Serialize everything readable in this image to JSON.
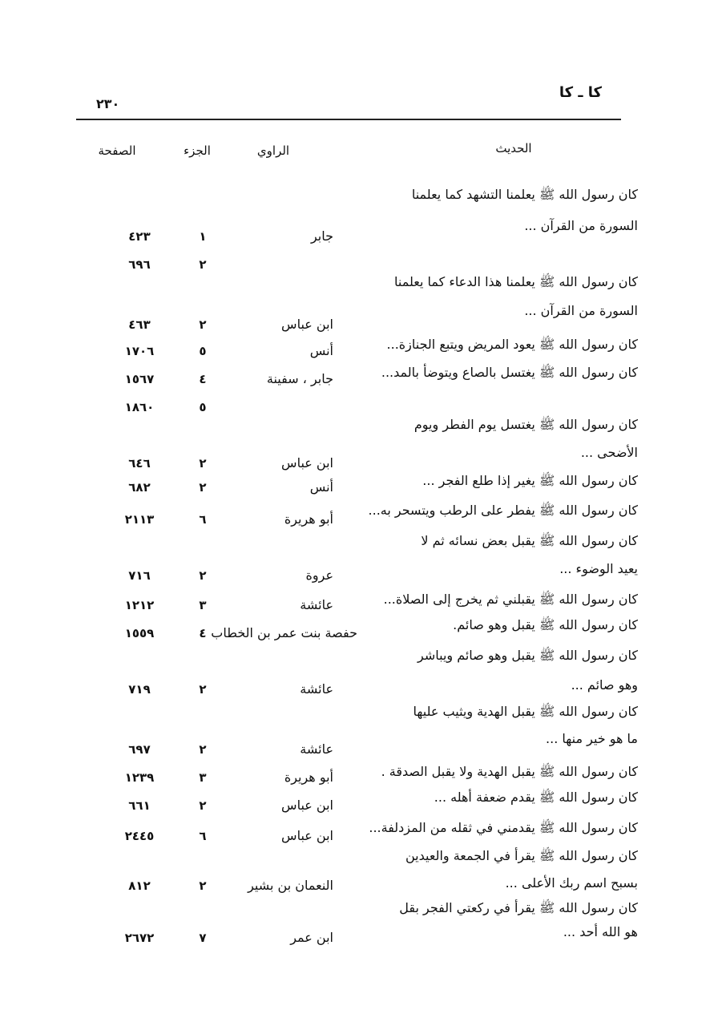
{
  "header": {
    "section": "كا ـ كا",
    "page_number": "٢٣٠"
  },
  "columns": {
    "hadith": "الحديث",
    "narrator": "الراوي",
    "volume": "الجزء",
    "page": "الصفحة"
  },
  "entries": [
    {
      "hadith_lines": [
        "كان رسول الله ﷺ يعلمنا التشهد كما يعلمنا",
        "السورة من القرآن ..."
      ],
      "refs": [
        {
          "narrator": "جابر",
          "volume": "١",
          "page": "٤٢٣"
        },
        {
          "narrator": "",
          "volume": "٢",
          "page": "٦٩٦"
        }
      ]
    },
    {
      "hadith_lines": [
        "كان رسول الله ﷺ يعلمنا هذا الدعاء كما يعلمنا",
        "السورة من القرآن ..."
      ],
      "refs": [
        {
          "narrator": "ابن عباس",
          "volume": "٢",
          "page": "٤٦٣"
        }
      ]
    },
    {
      "hadith_lines": [
        "كان رسول الله ﷺ يعود المريض ويتبع الجنازة..."
      ],
      "refs": [
        {
          "narrator": "أنس",
          "volume": "٥",
          "page": "١٧٠٦"
        }
      ]
    },
    {
      "hadith_lines": [
        "كان رسول الله ﷺ يغتسل بالصاع ويتوضأ بالمد..."
      ],
      "refs": [
        {
          "narrator": "جابر ، سفينة",
          "volume": "٤",
          "page": "١٥٦٧"
        },
        {
          "narrator": "",
          "volume": "٥",
          "page": "١٨٦٠"
        }
      ]
    },
    {
      "hadith_lines": [
        "كان رسول الله ﷺ يغتسل يوم الفطر ويوم",
        "الأضحى ..."
      ],
      "refs": [
        {
          "narrator": "ابن عباس",
          "volume": "٢",
          "page": "٦٤٦"
        }
      ]
    },
    {
      "hadith_lines": [
        "كان رسول الله ﷺ يغير إذا طلع الفجر ..."
      ],
      "refs": [
        {
          "narrator": "أنس",
          "volume": "٢",
          "page": "٦٨٢"
        }
      ]
    },
    {
      "hadith_lines": [
        "كان رسول الله ﷺ يفطر على الرطب ويتسحر به..."
      ],
      "refs": [
        {
          "narrator": "أبو هريرة",
          "volume": "٦",
          "page": "٢١١٣"
        }
      ]
    },
    {
      "hadith_lines": [
        "كان رسول الله ﷺ يقبل بعض نسائه ثم لا",
        "يعيد الوضوء ..."
      ],
      "refs": [
        {
          "narrator": "عروة",
          "volume": "٢",
          "page": "٧١٦"
        }
      ]
    },
    {
      "hadith_lines": [
        "كان رسول الله ﷺ يقبلني ثم يخرج إلى الصلاة..."
      ],
      "refs": [
        {
          "narrator": "عائشة",
          "volume": "٣",
          "page": "١٢١٢"
        }
      ]
    },
    {
      "hadith_lines": [
        "كان رسول الله ﷺ يقبل وهو صائم."
      ],
      "refs": [
        {
          "narrator": "حفصة بنت عمر بن الخطاب",
          "volume": "٤",
          "page": "١٥٥٩"
        }
      ]
    },
    {
      "hadith_lines": [
        "كان رسول الله ﷺ يقبل وهو صائم ويباشر",
        "وهو صائم ..."
      ],
      "refs": [
        {
          "narrator": "عائشة",
          "volume": "٢",
          "page": "٧١٩"
        }
      ]
    },
    {
      "hadith_lines": [
        "كان رسول الله ﷺ يقبل الهدية ويثيب عليها",
        "ما هو خير منها ..."
      ],
      "refs": [
        {
          "narrator": "عائشة",
          "volume": "٢",
          "page": "٦٩٧"
        }
      ]
    },
    {
      "hadith_lines": [
        "كان رسول الله ﷺ يقبل الهدية ولا يقبل الصدقة ."
      ],
      "refs": [
        {
          "narrator": "أبو هريرة",
          "volume": "٣",
          "page": "١٢٣٩"
        }
      ]
    },
    {
      "hadith_lines": [
        "كان رسول الله ﷺ يقدم ضعفة أهله ..."
      ],
      "refs": [
        {
          "narrator": "ابن عباس",
          "volume": "٢",
          "page": "٦٦١"
        }
      ]
    },
    {
      "hadith_lines": [
        "كان رسول الله ﷺ يقدمني في ثقله من المزدلفة..."
      ],
      "refs": [
        {
          "narrator": "ابن عباس",
          "volume": "٦",
          "page": "٢٤٤٥"
        }
      ]
    },
    {
      "hadith_lines": [
        "كان رسول الله ﷺ يقرأ في الجمعة والعيدين",
        "بسبح اسم ربك الأعلى ..."
      ],
      "refs": [
        {
          "narrator": "النعمان بن بشير",
          "volume": "٢",
          "page": "٨١٢"
        }
      ]
    },
    {
      "hadith_lines": [
        "كان رسول الله ﷺ يقرأ في ركعتي الفجر بقل",
        "هو الله أحد ..."
      ],
      "refs": [
        {
          "narrator": "ابن عمر",
          "volume": "٧",
          "page": "٢٦٧٢"
        }
      ]
    }
  ]
}
